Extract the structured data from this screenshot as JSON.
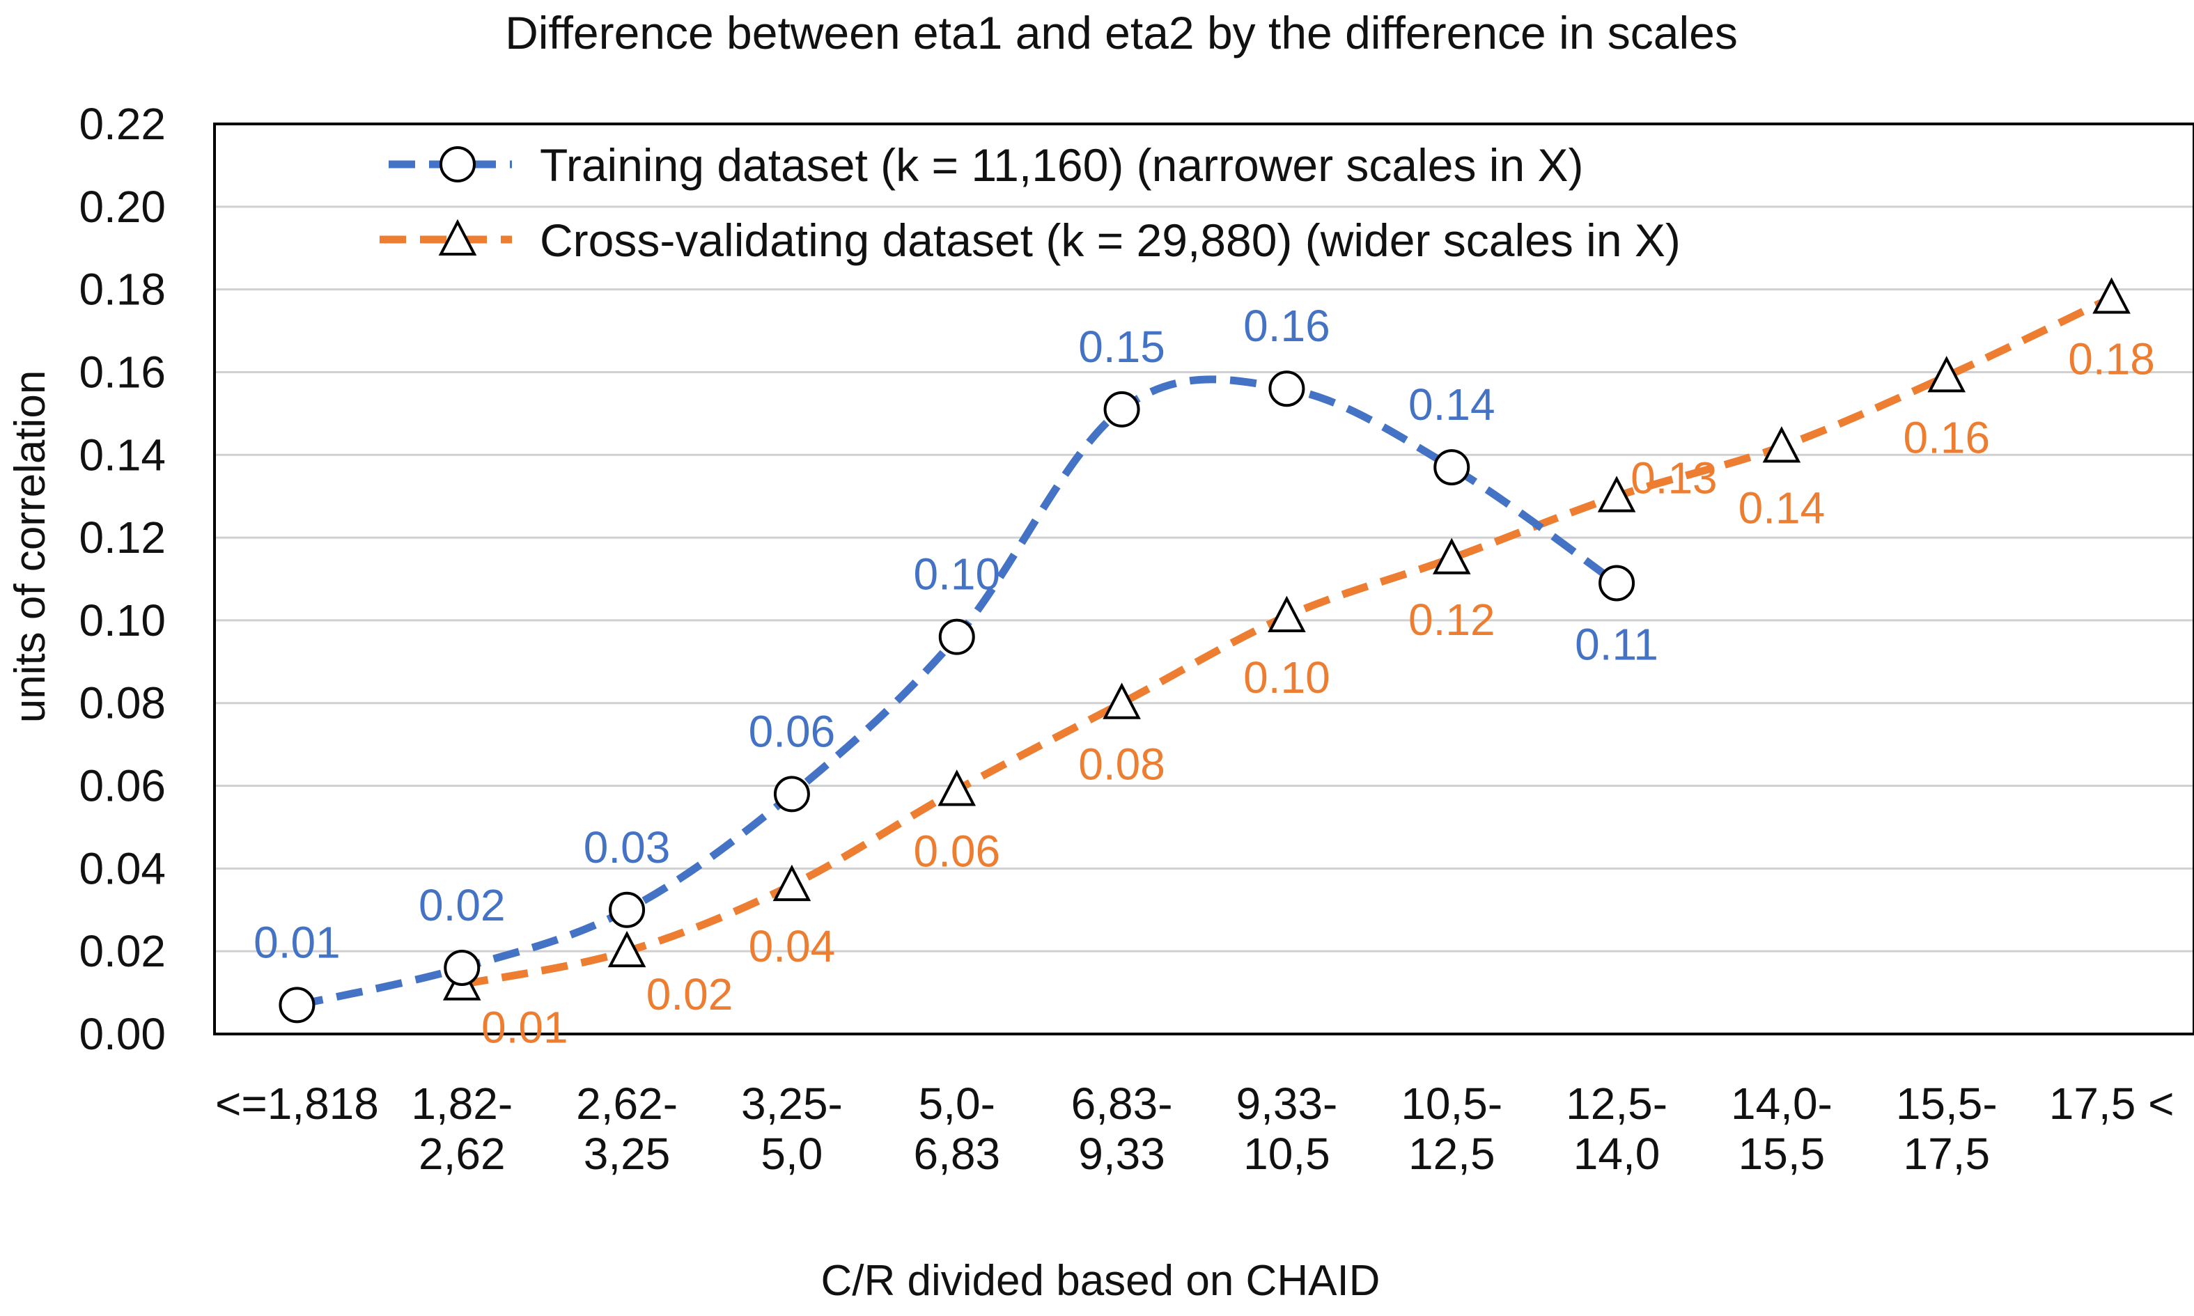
{
  "chart_data": {
    "type": "line",
    "title": "Difference between eta1 and eta2 by the difference in scales",
    "xlabel": "C/R divided based on CHAID",
    "ylabel": "units of correlation",
    "ylim": [
      0,
      0.22
    ],
    "yticks": [
      "0.00",
      "0.02",
      "0.04",
      "0.06",
      "0.08",
      "0.10",
      "0.12",
      "0.14",
      "0.16",
      "0.18",
      "0.20",
      "0.22"
    ],
    "grid": true,
    "legend_position": "top-left",
    "categories": [
      [
        "<=1,818"
      ],
      [
        "1,82-",
        "2,62"
      ],
      [
        "2,62-",
        "3,25"
      ],
      [
        "3,25-",
        "5,0"
      ],
      [
        "5,0-",
        "6,83"
      ],
      [
        "6,83-",
        "9,33"
      ],
      [
        "9,33-",
        "10,5"
      ],
      [
        "10,5-",
        "12,5"
      ],
      [
        "12,5-",
        "14,0"
      ],
      [
        "14,0-",
        "15,5"
      ],
      [
        "15,5-",
        "17,5"
      ],
      [
        "17,5 <"
      ]
    ],
    "series": [
      {
        "name": "Training dataset (k = 11,160) (narrower scales in X)",
        "marker": "circle",
        "color": "#4472C4",
        "values": [
          0.007,
          0.016,
          0.03,
          0.058,
          0.096,
          0.151,
          0.156,
          0.137,
          0.109,
          null,
          null,
          null
        ],
        "labels": [
          "0.01",
          "0.02",
          "0.03",
          "0.06",
          "0.10",
          "0.15",
          "0.16",
          "0.14",
          "0.11",
          null,
          null,
          null
        ],
        "label_pos": [
          "above",
          "above",
          "above",
          "above",
          "above",
          "above",
          "above",
          "above",
          "below",
          null,
          null,
          null
        ]
      },
      {
        "name": "Cross-validating dataset (k = 29,880) (wider scales in X)",
        "marker": "triangle",
        "color": "#ED7D31",
        "values": [
          null,
          0.012,
          0.02,
          0.036,
          0.059,
          0.08,
          0.101,
          0.115,
          0.13,
          0.142,
          0.159,
          0.178
        ],
        "labels": [
          null,
          "0.01",
          "0.02",
          "0.04",
          "0.06",
          "0.08",
          "0.10",
          "0.12",
          "0.13",
          "0.14",
          "0.16",
          "0.18"
        ],
        "label_pos": [
          null,
          "below-right",
          "below-right",
          "below",
          "below",
          "below",
          "below",
          "below",
          "right",
          "below",
          "below",
          "below"
        ]
      }
    ]
  }
}
